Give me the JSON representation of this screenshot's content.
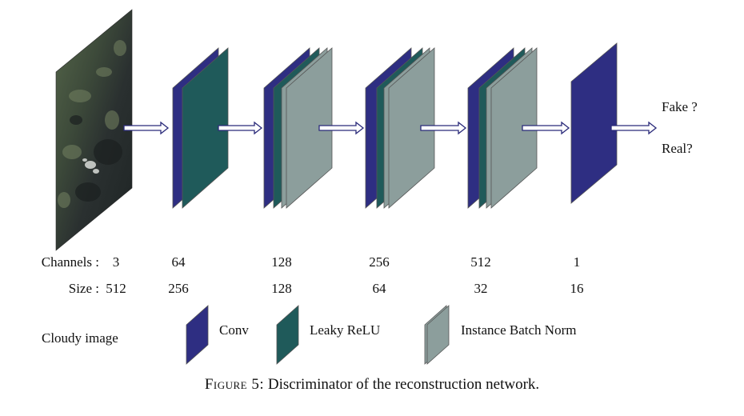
{
  "labels": {
    "channels": "Channels :",
    "size": "Size :",
    "cloudy_image": "Cloudy image",
    "fake": "Fake ?",
    "real": "Real?"
  },
  "stages": [
    {
      "channels": "3",
      "size": "512"
    },
    {
      "channels": "64",
      "size": "256"
    },
    {
      "channels": "128",
      "size": "128"
    },
    {
      "channels": "256",
      "size": "64"
    },
    {
      "channels": "512",
      "size": "32"
    },
    {
      "channels": "1",
      "size": "16"
    }
  ],
  "legend": [
    {
      "label": "Conv",
      "color": "#2e2e82"
    },
    {
      "label": "Leaky ReLU",
      "color": "#1f5a5a"
    },
    {
      "label": "Instance Batch Norm",
      "color": "#8c9e9c"
    }
  ],
  "colors": {
    "conv": "#2e2e82",
    "leaky_relu": "#1f5a5a",
    "instance_norm": "#8c9e9c"
  },
  "caption": {
    "prefix": "Figure 5:",
    "text": " Discriminator of the reconstruction network."
  }
}
